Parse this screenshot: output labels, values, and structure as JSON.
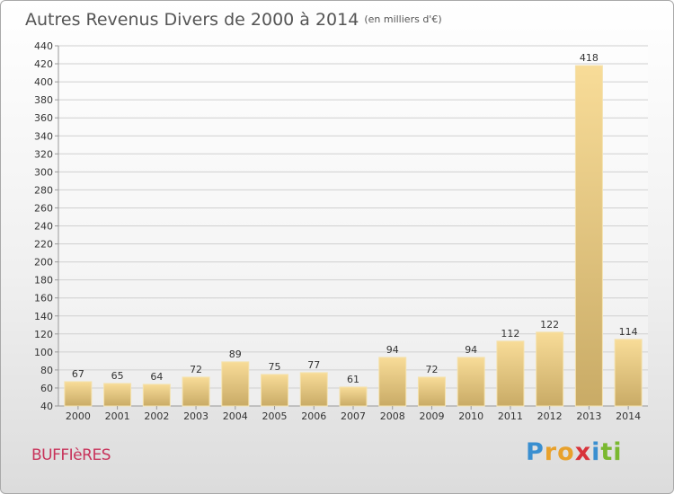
{
  "header": {
    "title": "Autres Revenus Divers de 2000 à 2014",
    "unit": "(en milliers d'€)"
  },
  "footer": {
    "commune": "BUFFIèRES",
    "logo_letters": [
      "P",
      "r",
      "o",
      "x",
      "i",
      "t",
      "i"
    ],
    "logo_colors": [
      "#3a8fd0",
      "#e8a12c",
      "#e8a12c",
      "#d8323a",
      "#3a8fd0",
      "#7ab830",
      "#7ab830"
    ]
  },
  "colors": {
    "bar_light": "#f8dc98",
    "bar_dark": "#c9ab66",
    "grid": "#d0d0d0",
    "axis": "#999999",
    "text": "#333333"
  },
  "chart_data": {
    "type": "bar",
    "title": "Autres Revenus Divers de 2000 à 2014",
    "xlabel": "",
    "ylabel": "",
    "ylim": [
      40,
      440
    ],
    "ytick_step": 20,
    "grid": true,
    "categories": [
      "2000",
      "2001",
      "2002",
      "2003",
      "2004",
      "2005",
      "2006",
      "2007",
      "2008",
      "2009",
      "2010",
      "2011",
      "2012",
      "2013",
      "2014"
    ],
    "values": [
      67,
      65,
      64,
      72,
      89,
      75,
      77,
      61,
      94,
      72,
      94,
      112,
      122,
      418,
      114
    ]
  }
}
